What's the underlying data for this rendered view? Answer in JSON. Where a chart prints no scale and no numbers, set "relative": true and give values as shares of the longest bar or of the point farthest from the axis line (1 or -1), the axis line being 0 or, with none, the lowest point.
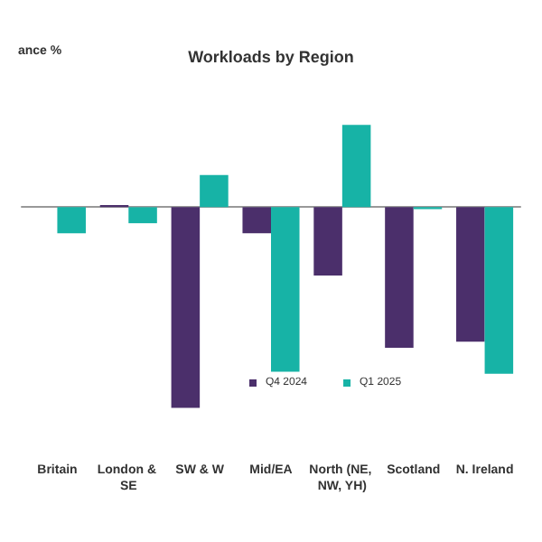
{
  "chart_data": {
    "type": "bar",
    "title": "Workloads by Region",
    "annotations": [
      "ance %"
    ],
    "relative": true,
    "categories": [
      "Britain",
      "London & SE",
      "SW & W",
      "Mid/EA",
      "North (NE, NW, YH)",
      "Scotland",
      "N. Ireland"
    ],
    "series": [
      {
        "name": "Q4 2024",
        "color": "#4b2f6b",
        "values": [
          null,
          0.01,
          -1,
          -0.13,
          -0.34,
          -0.7,
          -0.67
        ]
      },
      {
        "name": "Q1 2025",
        "color": "#17b3a6",
        "values": [
          -0.13,
          -0.08,
          0.16,
          -0.82,
          0.41,
          -0.01,
          -0.83
        ]
      }
    ],
    "legend": "bottom"
  }
}
